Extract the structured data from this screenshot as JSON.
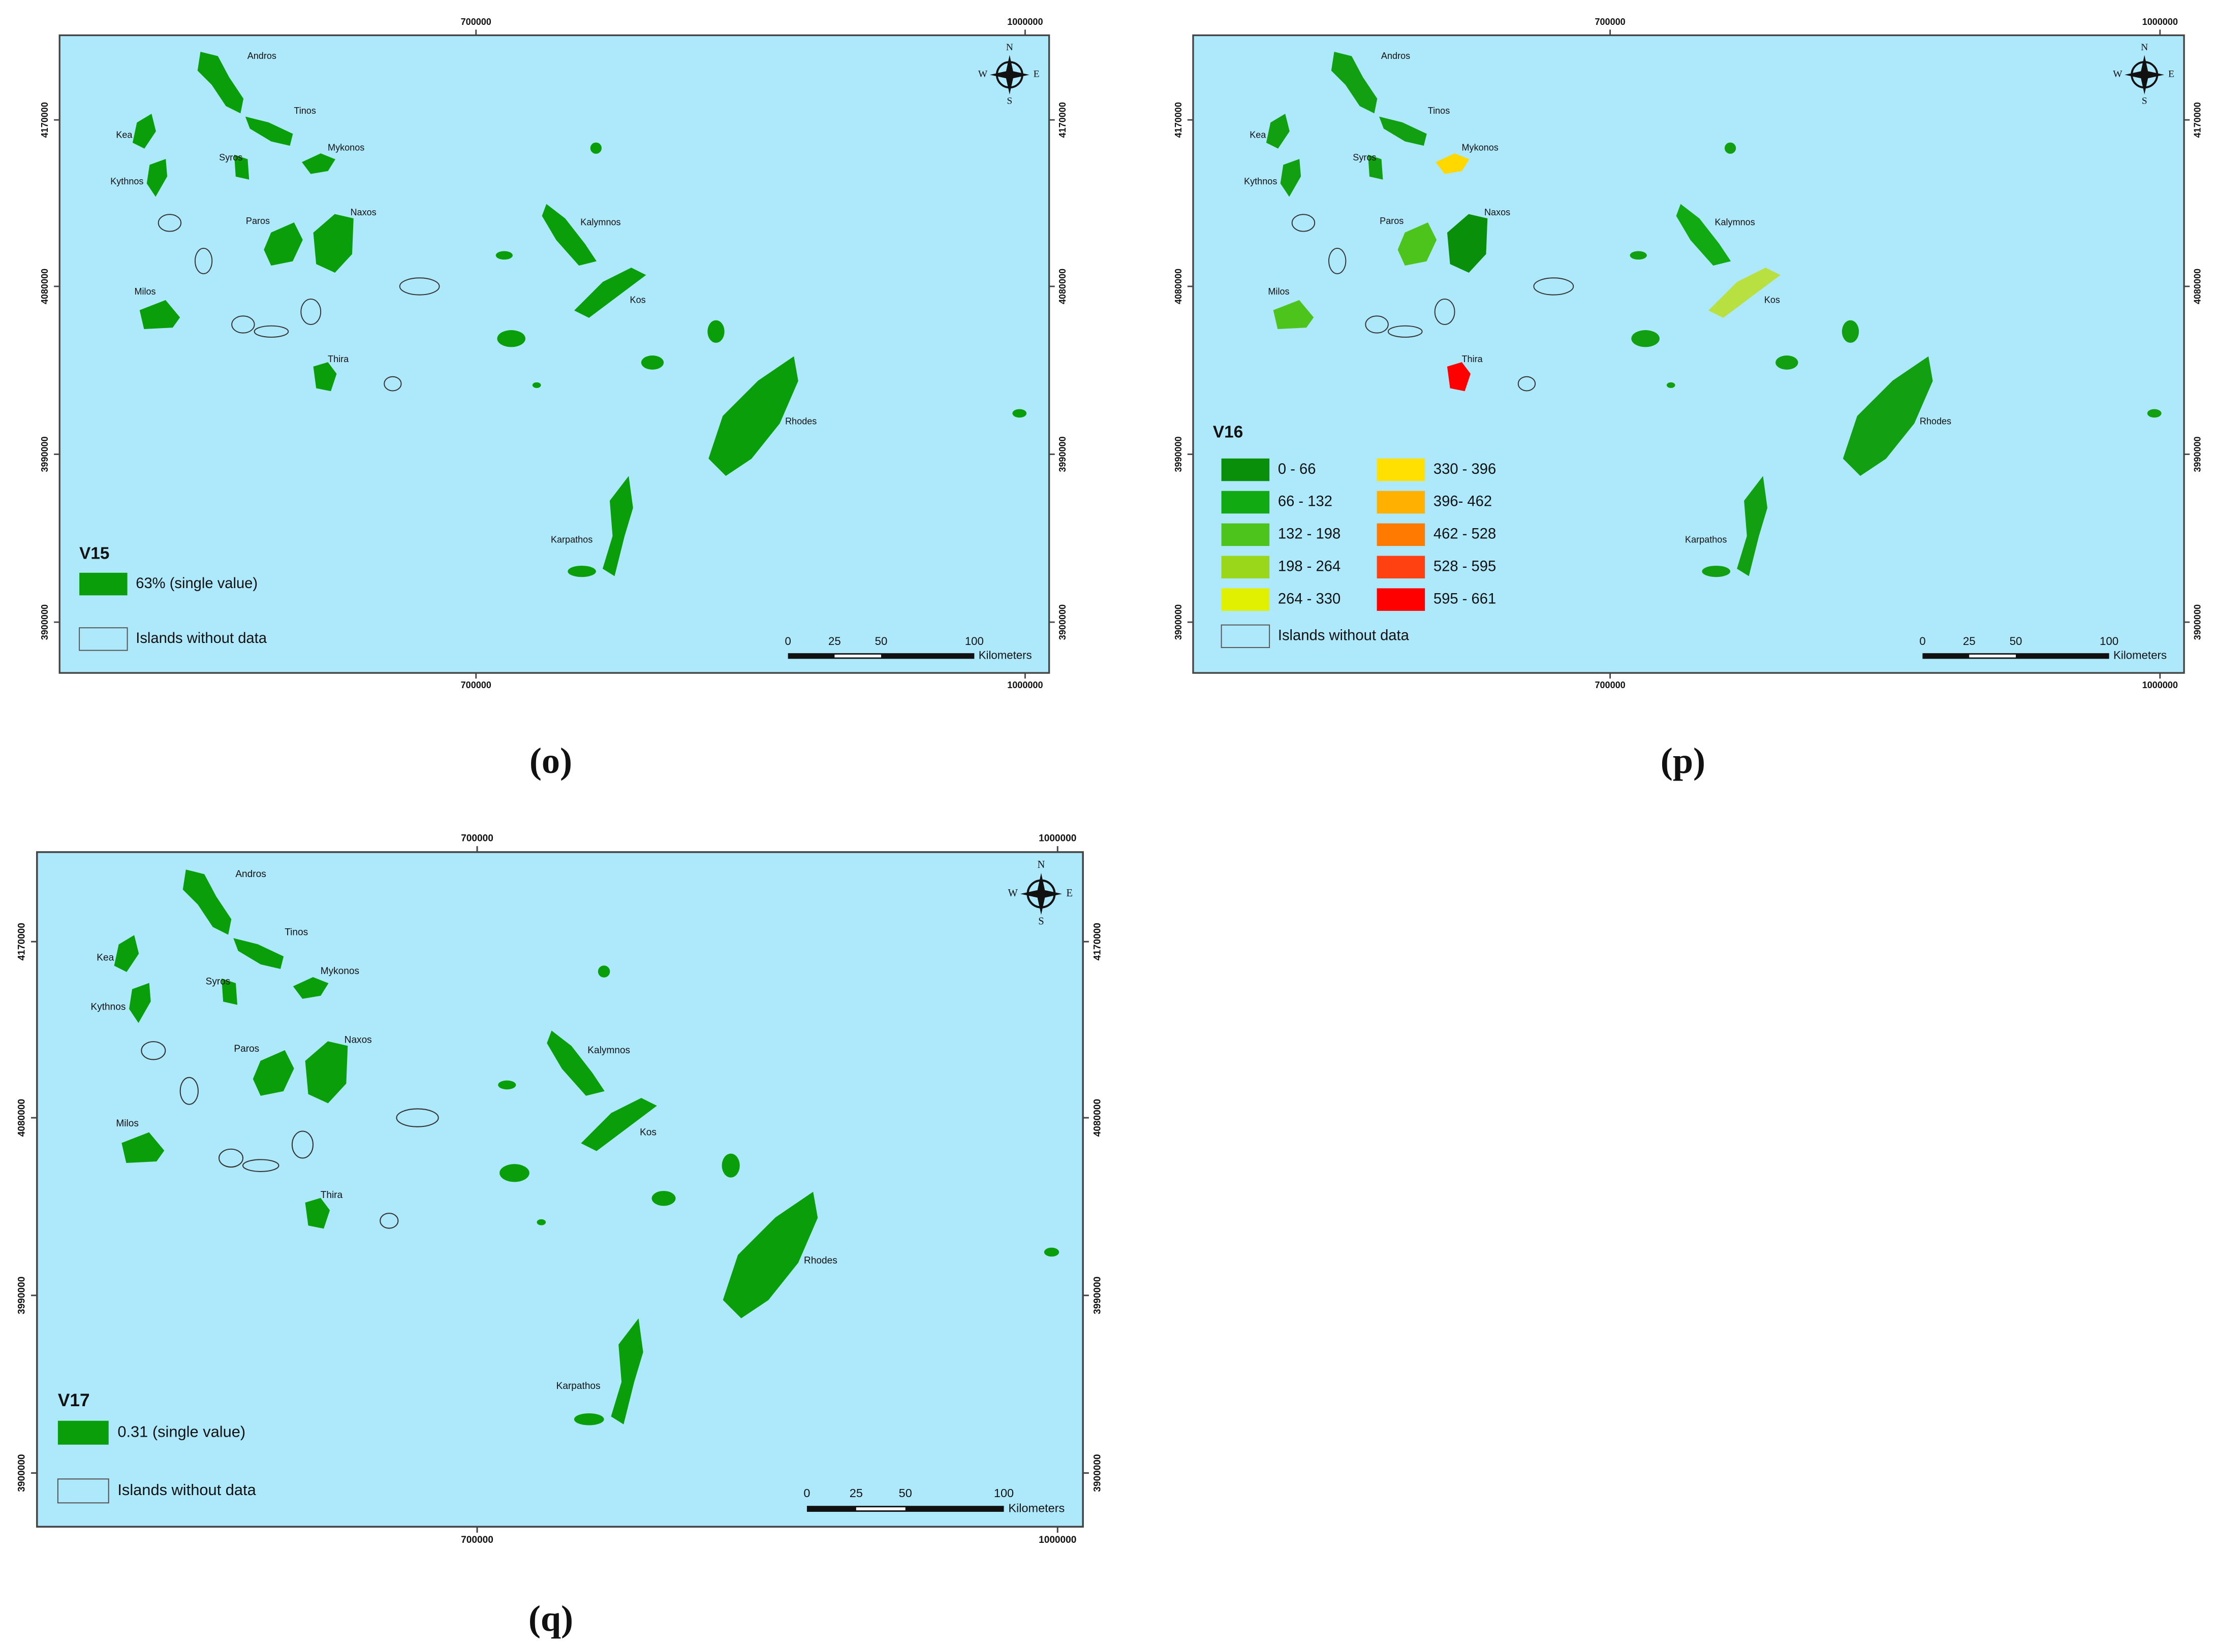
{
  "panels": [
    {
      "caption": "(o)",
      "legend": {
        "title": "V15",
        "items": [
          {
            "label": "63% (single value)",
            "color": "#0a9e0a"
          }
        ],
        "no_data": "Islands without data"
      },
      "x_ticks": [
        "700000",
        "1000000"
      ],
      "y_ticks": [
        "4170000",
        "4080000",
        "3990000",
        "3900000"
      ],
      "scale": {
        "ticks": [
          "0",
          "25",
          "50",
          "100"
        ],
        "unit": "Kilometers"
      },
      "compass": [
        "N",
        "E",
        "S",
        "W"
      ],
      "islands": [
        {
          "name": "Andros",
          "color": "#0a9e0a"
        },
        {
          "name": "Tinos",
          "color": "#0a9e0a"
        },
        {
          "name": "Kea",
          "color": "#0a9e0a"
        },
        {
          "name": "Mykonos",
          "color": "#0a9e0a"
        },
        {
          "name": "Syros",
          "color": "#0a9e0a"
        },
        {
          "name": "Kythnos",
          "color": "#0a9e0a"
        },
        {
          "name": "Paros",
          "color": "#0a9e0a"
        },
        {
          "name": "Naxos",
          "color": "#0a9e0a"
        },
        {
          "name": "Kalymnos",
          "color": "#0a9e0a"
        },
        {
          "name": "Milos",
          "color": "#0a9e0a"
        },
        {
          "name": "Kos",
          "color": "#0a9e0a"
        },
        {
          "name": "Thira",
          "color": "#0a9e0a"
        },
        {
          "name": "Rhodes",
          "color": "#0a9e0a"
        },
        {
          "name": "Karpathos",
          "color": "#0a9e0a"
        }
      ]
    },
    {
      "caption": "(p)",
      "legend": {
        "title": "V16",
        "items": [
          {
            "label": "0 - 66",
            "color": "#0a8f0a"
          },
          {
            "label": "66 - 132",
            "color": "#12aa12"
          },
          {
            "label": "132 - 198",
            "color": "#4cc41c"
          },
          {
            "label": "198 - 264",
            "color": "#9ad61a"
          },
          {
            "label": "264 - 330",
            "color": "#e0f000"
          },
          {
            "label": "330 - 396",
            "color": "#ffe000"
          },
          {
            "label": "396- 462",
            "color": "#ffb000"
          },
          {
            "label": "462 - 528",
            "color": "#ff7a00"
          },
          {
            "label": "528 - 595",
            "color": "#ff4010"
          },
          {
            "label": "595 - 661",
            "color": "#ff0000"
          }
        ],
        "no_data": "Islands without data"
      },
      "x_ticks": [
        "700000",
        "1000000"
      ],
      "y_ticks": [
        "4170000",
        "4080000",
        "3990000",
        "3900000"
      ],
      "scale": {
        "ticks": [
          "0",
          "25",
          "50",
          "100"
        ],
        "unit": "Kilometers"
      },
      "compass": [
        "N",
        "E",
        "S",
        "W"
      ],
      "islands": [
        {
          "name": "Andros",
          "color": "#12a012"
        },
        {
          "name": "Tinos",
          "color": "#12a012"
        },
        {
          "name": "Kea",
          "color": "#12a012"
        },
        {
          "name": "Mykonos",
          "color": "#ffd800"
        },
        {
          "name": "Syros",
          "color": "#12a012"
        },
        {
          "name": "Kythnos",
          "color": "#12a012"
        },
        {
          "name": "Paros",
          "color": "#4cc41c"
        },
        {
          "name": "Naxos",
          "color": "#0a8f0a"
        },
        {
          "name": "Kalymnos",
          "color": "#12aa12"
        },
        {
          "name": "Milos",
          "color": "#4cc41c"
        },
        {
          "name": "Kos",
          "color": "#b8e040"
        },
        {
          "name": "Thira",
          "color": "#ff0000"
        },
        {
          "name": "Rhodes",
          "color": "#12a012"
        },
        {
          "name": "Karpathos",
          "color": "#12a012"
        }
      ]
    },
    {
      "caption": "(q)",
      "legend": {
        "title": "V17",
        "items": [
          {
            "label": "0.31 (single value)",
            "color": "#0a9e0a"
          }
        ],
        "no_data": "Islands without data"
      },
      "x_ticks": [
        "700000",
        "1000000"
      ],
      "y_ticks": [
        "4170000",
        "4080000",
        "3990000",
        "3900000"
      ],
      "scale": {
        "ticks": [
          "0",
          "25",
          "50",
          "100"
        ],
        "unit": "Kilometers"
      },
      "compass": [
        "N",
        "E",
        "S",
        "W"
      ],
      "islands": [
        {
          "name": "Andros",
          "color": "#0a9e0a"
        },
        {
          "name": "Tinos",
          "color": "#0a9e0a"
        },
        {
          "name": "Kea",
          "color": "#0a9e0a"
        },
        {
          "name": "Mykonos",
          "color": "#0a9e0a"
        },
        {
          "name": "Syros",
          "color": "#0a9e0a"
        },
        {
          "name": "Kythnos",
          "color": "#0a9e0a"
        },
        {
          "name": "Paros",
          "color": "#0a9e0a"
        },
        {
          "name": "Naxos",
          "color": "#0a9e0a"
        },
        {
          "name": "Kalymnos",
          "color": "#0a9e0a"
        },
        {
          "name": "Milos",
          "color": "#0a9e0a"
        },
        {
          "name": "Kos",
          "color": "#0a9e0a"
        },
        {
          "name": "Thira",
          "color": "#0a9e0a"
        },
        {
          "name": "Rhodes",
          "color": "#0a9e0a"
        },
        {
          "name": "Karpathos",
          "color": "#0a9e0a"
        }
      ]
    }
  ]
}
